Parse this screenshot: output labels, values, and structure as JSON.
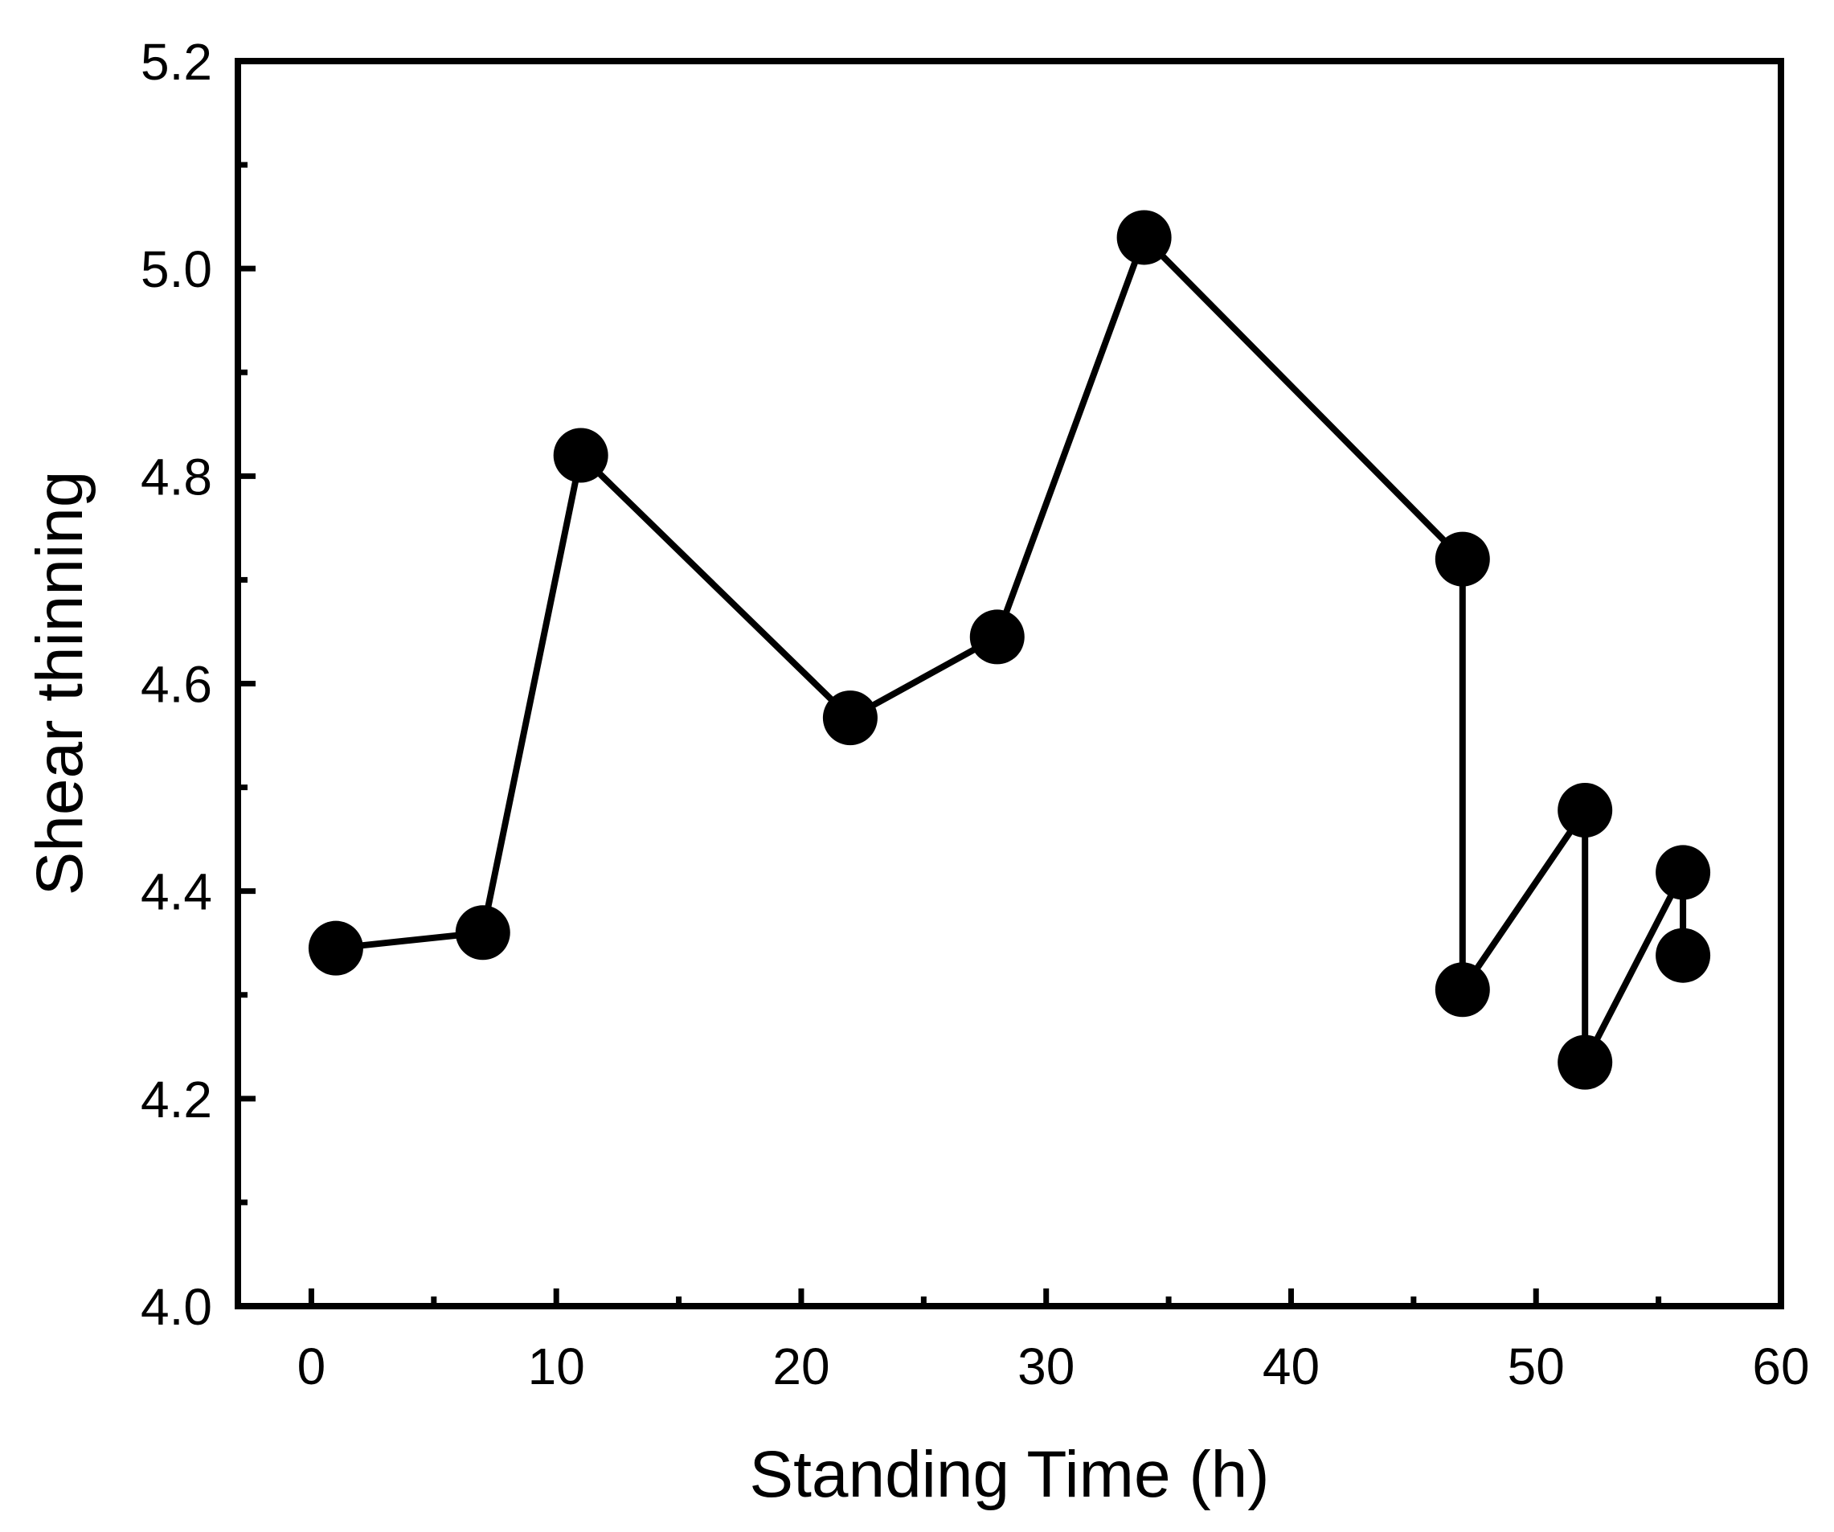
{
  "chart_data": {
    "type": "line",
    "xlabel": "Standing Time (h)",
    "ylabel": "Shear thinning",
    "xlim": [
      -3,
      60
    ],
    "ylim": [
      4.0,
      5.2
    ],
    "xticks": [
      0,
      10,
      20,
      30,
      40,
      50,
      60
    ],
    "yticks": [
      4.0,
      4.2,
      4.4,
      4.6,
      4.8,
      5.0,
      5.2
    ],
    "xtick_labels": [
      "0",
      "10",
      "20",
      "30",
      "40",
      "50",
      "60"
    ],
    "ytick_labels": [
      "4.0",
      "4.2",
      "4.4",
      "4.6",
      "4.8",
      "5.0",
      "5.2"
    ],
    "grid": false,
    "series": [
      {
        "x": [
          1,
          7,
          11,
          22,
          28,
          34,
          47,
          47,
          52,
          52,
          56,
          56
        ],
        "y": [
          4.345,
          4.36,
          4.82,
          4.567,
          4.645,
          5.03,
          4.72,
          4.305,
          4.478,
          4.235,
          4.418,
          4.338
        ],
        "color": "#000000",
        "marker": "filled-circle"
      }
    ]
  }
}
